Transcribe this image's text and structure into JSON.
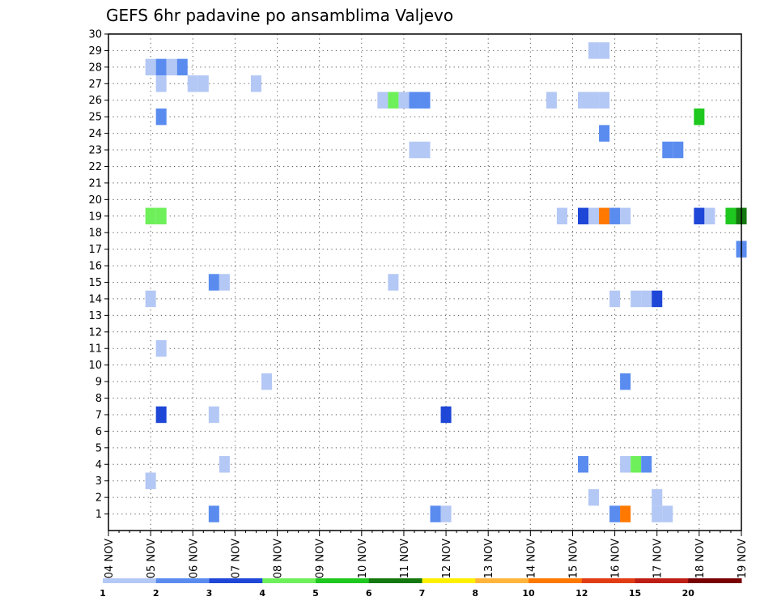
{
  "chart_data": {
    "type": "heatmap",
    "title": "GEFS 6hr padavine po ansamblima Valjevo",
    "y_ticks": [
      1,
      2,
      3,
      4,
      5,
      6,
      7,
      8,
      9,
      10,
      11,
      12,
      13,
      14,
      15,
      16,
      17,
      18,
      19,
      20,
      21,
      22,
      23,
      24,
      25,
      26,
      27,
      28,
      29,
      30
    ],
    "ylim": [
      0,
      30
    ],
    "x_ticks": [
      "04 NOV",
      "05 NOV",
      "06 NOV",
      "07 NOV",
      "08 NOV",
      "09 NOV",
      "10 NOV",
      "11 NOV",
      "12 NOV",
      "13 NOV",
      "14 NOV",
      "15 NOV",
      "16 NOV",
      "17 NOV",
      "18 NOV",
      "19 NOV"
    ],
    "x_unit": "6-hour step from 04 NOV 00Z",
    "xlim": [
      0,
      60
    ],
    "grid": true,
    "legend": {
      "placement": "bottom",
      "labels": [
        "1",
        "2",
        "3",
        "4",
        "5",
        "6",
        "7",
        "8",
        "10",
        "12",
        "15",
        "20"
      ],
      "colors": [
        "#b4c8f5",
        "#5a8cf0",
        "#1e46d7",
        "#6ef05a",
        "#1ec81e",
        "#14780f",
        "#fff000",
        "#ffb43c",
        "#ff7800",
        "#e13c14",
        "#be1e14",
        "#780000"
      ]
    },
    "cells": [
      {
        "t": 4,
        "m": 28,
        "v": 1.5
      },
      {
        "t": 5,
        "m": 28,
        "v": 2.5
      },
      {
        "t": 6,
        "m": 28,
        "v": 1.5
      },
      {
        "t": 7,
        "m": 28,
        "v": 2.5
      },
      {
        "t": 5,
        "m": 27,
        "v": 1.5
      },
      {
        "t": 8,
        "m": 27,
        "v": 1.5
      },
      {
        "t": 9,
        "m": 27,
        "v": 1.5
      },
      {
        "t": 14,
        "m": 27,
        "v": 1.5
      },
      {
        "t": 26,
        "m": 26,
        "v": 1.5
      },
      {
        "t": 27,
        "m": 26,
        "v": 4.5
      },
      {
        "t": 28,
        "m": 26,
        "v": 1.5
      },
      {
        "t": 29,
        "m": 26,
        "v": 2.5
      },
      {
        "t": 30,
        "m": 26,
        "v": 2.5
      },
      {
        "t": 42,
        "m": 26,
        "v": 1.5
      },
      {
        "t": 45,
        "m": 26,
        "v": 1.5
      },
      {
        "t": 46,
        "m": 26,
        "v": 1.5
      },
      {
        "t": 47,
        "m": 26,
        "v": 1.5
      },
      {
        "t": 46,
        "m": 29,
        "v": 1.5
      },
      {
        "t": 47,
        "m": 29,
        "v": 1.5
      },
      {
        "t": 5,
        "m": 25,
        "v": 2.5
      },
      {
        "t": 56,
        "m": 25,
        "v": 5.5
      },
      {
        "t": 47,
        "m": 24,
        "v": 2.5
      },
      {
        "t": 29,
        "m": 23,
        "v": 1.5
      },
      {
        "t": 30,
        "m": 23,
        "v": 1.5
      },
      {
        "t": 53,
        "m": 23,
        "v": 2.5
      },
      {
        "t": 54,
        "m": 23,
        "v": 2.5
      },
      {
        "t": 4,
        "m": 19,
        "v": 4.5
      },
      {
        "t": 5,
        "m": 19,
        "v": 4.5
      },
      {
        "t": 43,
        "m": 19,
        "v": 1.5
      },
      {
        "t": 45,
        "m": 19,
        "v": 3.5
      },
      {
        "t": 46,
        "m": 19,
        "v": 1.5
      },
      {
        "t": 47,
        "m": 19,
        "v": 10.5
      },
      {
        "t": 48,
        "m": 19,
        "v": 2.5
      },
      {
        "t": 49,
        "m": 19,
        "v": 1.5
      },
      {
        "t": 56,
        "m": 19,
        "v": 3.5
      },
      {
        "t": 57,
        "m": 19,
        "v": 1.5
      },
      {
        "t": 59,
        "m": 19,
        "v": 5.5
      },
      {
        "t": 60,
        "m": 19,
        "v": 6.5
      },
      {
        "t": 60,
        "m": 17,
        "v": 2.5
      },
      {
        "t": 10,
        "m": 15,
        "v": 2.5
      },
      {
        "t": 11,
        "m": 15,
        "v": 1.5
      },
      {
        "t": 27,
        "m": 15,
        "v": 1.5
      },
      {
        "t": 4,
        "m": 14,
        "v": 1.5
      },
      {
        "t": 48,
        "m": 14,
        "v": 1.5
      },
      {
        "t": 50,
        "m": 14,
        "v": 1.5
      },
      {
        "t": 51,
        "m": 14,
        "v": 1.5
      },
      {
        "t": 52,
        "m": 14,
        "v": 3.5
      },
      {
        "t": 5,
        "m": 11,
        "v": 1.5
      },
      {
        "t": 15,
        "m": 9,
        "v": 1.5
      },
      {
        "t": 49,
        "m": 9,
        "v": 2.5
      },
      {
        "t": 5,
        "m": 7,
        "v": 3.5
      },
      {
        "t": 10,
        "m": 7,
        "v": 1.5
      },
      {
        "t": 32,
        "m": 7,
        "v": 3.5
      },
      {
        "t": 11,
        "m": 4,
        "v": 1.5
      },
      {
        "t": 45,
        "m": 4,
        "v": 2.5
      },
      {
        "t": 49,
        "m": 4,
        "v": 1.5
      },
      {
        "t": 50,
        "m": 4,
        "v": 4.5
      },
      {
        "t": 51,
        "m": 4,
        "v": 2.5
      },
      {
        "t": 4,
        "m": 3,
        "v": 1.5
      },
      {
        "t": 46,
        "m": 2,
        "v": 1.5
      },
      {
        "t": 52,
        "m": 2,
        "v": 1.5
      },
      {
        "t": 10,
        "m": 1,
        "v": 2.5
      },
      {
        "t": 31,
        "m": 1,
        "v": 2.5
      },
      {
        "t": 32,
        "m": 1,
        "v": 1.5
      },
      {
        "t": 48,
        "m": 1,
        "v": 2.5
      },
      {
        "t": 49,
        "m": 1,
        "v": 10.5
      },
      {
        "t": 52,
        "m": 1,
        "v": 1.5
      },
      {
        "t": 53,
        "m": 1,
        "v": 1.5
      }
    ]
  }
}
